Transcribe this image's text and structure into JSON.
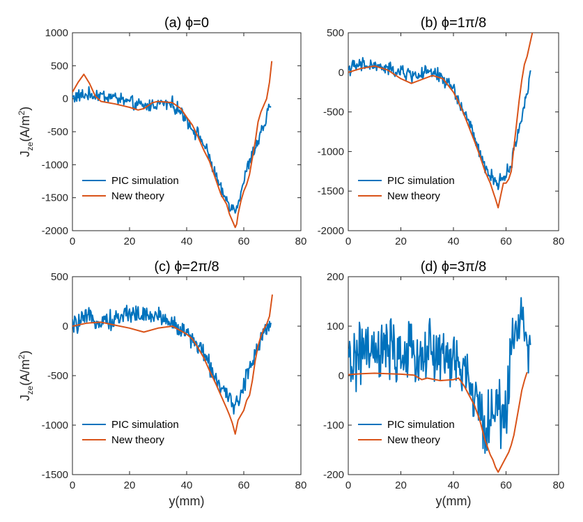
{
  "chart_data": [
    {
      "type": "line",
      "title": "(a) ϕ=0",
      "xlabel": "",
      "ylabel": "J_ze(A/m^2)",
      "xlim": [
        0,
        80
      ],
      "ylim": [
        -2000,
        1000
      ],
      "xticks": [
        0,
        20,
        40,
        60,
        80
      ],
      "yticks": [
        -2000,
        -1500,
        -1000,
        -500,
        0,
        500,
        1000
      ],
      "legend": "bottom-left",
      "series": [
        {
          "name": "PIC simulation",
          "color": "#0072BD",
          "noise": 70,
          "x": [
            0,
            5,
            10,
            15,
            20,
            25,
            30,
            35,
            40,
            42,
            45,
            48,
            50,
            52,
            55,
            57,
            58,
            60,
            62,
            65,
            68,
            69.5
          ],
          "y": [
            20,
            60,
            50,
            20,
            -60,
            -120,
            -70,
            -80,
            -300,
            -450,
            -600,
            -900,
            -1150,
            -1400,
            -1600,
            -1700,
            -1550,
            -1250,
            -950,
            -650,
            -300,
            -30
          ]
        },
        {
          "name": "New theory",
          "color": "#D95319",
          "noise": 0,
          "x": [
            0,
            2,
            4,
            6,
            8,
            10,
            15,
            20,
            23,
            25,
            28,
            30,
            35,
            38,
            40,
            42,
            44,
            46,
            48,
            50,
            52,
            54,
            55,
            56,
            57,
            57.5,
            58,
            59,
            60,
            61,
            62,
            63,
            64,
            65,
            66,
            67,
            68,
            69,
            69.8
          ],
          "y": [
            100,
            250,
            370,
            230,
            40,
            -40,
            -80,
            -130,
            -170,
            -150,
            -60,
            -40,
            -60,
            -150,
            -280,
            -400,
            -580,
            -780,
            -950,
            -1200,
            -1450,
            -1600,
            -1750,
            -1850,
            -1950,
            -1900,
            -1750,
            -1550,
            -1400,
            -1300,
            -1150,
            -900,
            -650,
            -350,
            -200,
            -100,
            0,
            250,
            570
          ]
        }
      ]
    },
    {
      "type": "line",
      "title": "(b) ϕ=1π/8",
      "xlabel": "",
      "ylabel": "",
      "xlim": [
        0,
        80
      ],
      "ylim": [
        -2000,
        500
      ],
      "xticks": [
        0,
        20,
        40,
        60,
        80
      ],
      "yticks": [
        -2000,
        -1500,
        -1000,
        -500,
        0,
        500
      ],
      "legend": "bottom-left",
      "series": [
        {
          "name": "PIC simulation",
          "color": "#0072BD",
          "noise": 60,
          "x": [
            0,
            5,
            10,
            15,
            20,
            25,
            30,
            35,
            40,
            42,
            45,
            48,
            50,
            52,
            55,
            57,
            58,
            60,
            62,
            65,
            68,
            69.5
          ],
          "y": [
            50,
            90,
            80,
            40,
            0,
            -40,
            0,
            -50,
            -200,
            -380,
            -560,
            -820,
            -1050,
            -1200,
            -1350,
            -1400,
            -1350,
            -1300,
            -1150,
            -700,
            -250,
            0
          ]
        },
        {
          "name": "New theory",
          "color": "#D95319",
          "noise": 0,
          "x": [
            0,
            5,
            10,
            15,
            20,
            24,
            28,
            32,
            36,
            40,
            42,
            44,
            46,
            48,
            50,
            52,
            54,
            55,
            56,
            57,
            58,
            59,
            60,
            61,
            62,
            63,
            64,
            65,
            66,
            67,
            68,
            69,
            70
          ],
          "y": [
            0,
            50,
            80,
            30,
            -80,
            -140,
            -90,
            -40,
            -80,
            -250,
            -380,
            -530,
            -700,
            -870,
            -1050,
            -1250,
            -1400,
            -1500,
            -1600,
            -1710,
            -1550,
            -1400,
            -1400,
            -1350,
            -1250,
            -950,
            -650,
            -350,
            -100,
            100,
            200,
            350,
            500
          ]
        }
      ]
    },
    {
      "type": "line",
      "title": "(c) ϕ=2π/8",
      "xlabel": "y(mm)",
      "ylabel": "J_ze(A/m^2)",
      "xlim": [
        0,
        80
      ],
      "ylim": [
        -1500,
        500
      ],
      "xticks": [
        0,
        20,
        40,
        60,
        80
      ],
      "yticks": [
        -1500,
        -1000,
        -500,
        0,
        500
      ],
      "legend": "bottom-left",
      "series": [
        {
          "name": "PIC simulation",
          "color": "#0072BD",
          "noise": 65,
          "x": [
            0,
            5,
            10,
            15,
            20,
            25,
            30,
            35,
            40,
            45,
            48,
            50,
            52,
            54,
            55,
            57,
            58,
            60,
            62,
            65,
            68,
            69.5
          ],
          "y": [
            0,
            80,
            60,
            60,
            150,
            100,
            110,
            30,
            -80,
            -230,
            -400,
            -500,
            -620,
            -720,
            -760,
            -780,
            -760,
            -620,
            -400,
            -200,
            0,
            60
          ]
        },
        {
          "name": "New theory",
          "color": "#D95319",
          "noise": 0,
          "x": [
            0,
            5,
            10,
            15,
            20,
            25,
            30,
            35,
            40,
            42,
            44,
            46,
            48,
            50,
            52,
            54,
            55,
            56,
            57,
            58,
            59,
            60,
            61,
            62,
            63,
            64,
            65,
            66,
            67,
            68,
            69,
            70
          ],
          "y": [
            0,
            30,
            40,
            10,
            -20,
            -60,
            -20,
            0,
            -80,
            -130,
            -220,
            -320,
            -450,
            -570,
            -700,
            -830,
            -900,
            -980,
            -1090,
            -950,
            -900,
            -850,
            -750,
            -700,
            -550,
            -350,
            -200,
            -100,
            -30,
            20,
            100,
            320
          ]
        }
      ]
    },
    {
      "type": "line",
      "title": "(d) ϕ=3π/8",
      "xlabel": "y(mm)",
      "ylabel": "",
      "xlim": [
        0,
        80
      ],
      "ylim": [
        -200,
        200
      ],
      "xticks": [
        0,
        20,
        40,
        60,
        80
      ],
      "yticks": [
        -200,
        -100,
        0,
        100,
        200
      ],
      "legend": "bottom-left",
      "series": [
        {
          "name": "PIC simulation",
          "color": "#0072BD",
          "noise": 42,
          "x": [
            0,
            5,
            10,
            15,
            20,
            25,
            30,
            35,
            40,
            43,
            45,
            48,
            50,
            52,
            55,
            57,
            58,
            60,
            62,
            64,
            66,
            68,
            69.5
          ],
          "y": [
            20,
            50,
            40,
            50,
            40,
            40,
            50,
            40,
            30,
            20,
            0,
            -40,
            -80,
            -100,
            -80,
            -60,
            -80,
            -70,
            50,
            110,
            130,
            80,
            20
          ]
        },
        {
          "name": "New theory",
          "color": "#D95319",
          "noise": 0,
          "x": [
            0,
            5,
            10,
            15,
            20,
            25,
            28,
            30,
            35,
            40,
            42,
            44,
            46,
            48,
            50,
            52,
            54,
            55,
            56,
            57,
            58,
            59,
            60,
            61,
            62,
            63,
            64,
            65,
            66,
            67,
            68
          ],
          "y": [
            2,
            4,
            5,
            4,
            3,
            1,
            -8,
            -5,
            -10,
            -8,
            -5,
            -20,
            -40,
            -60,
            -90,
            -130,
            -160,
            -170,
            -185,
            -195,
            -185,
            -175,
            -165,
            -155,
            -140,
            -120,
            -90,
            -60,
            -30,
            -10,
            7
          ]
        }
      ]
    }
  ]
}
